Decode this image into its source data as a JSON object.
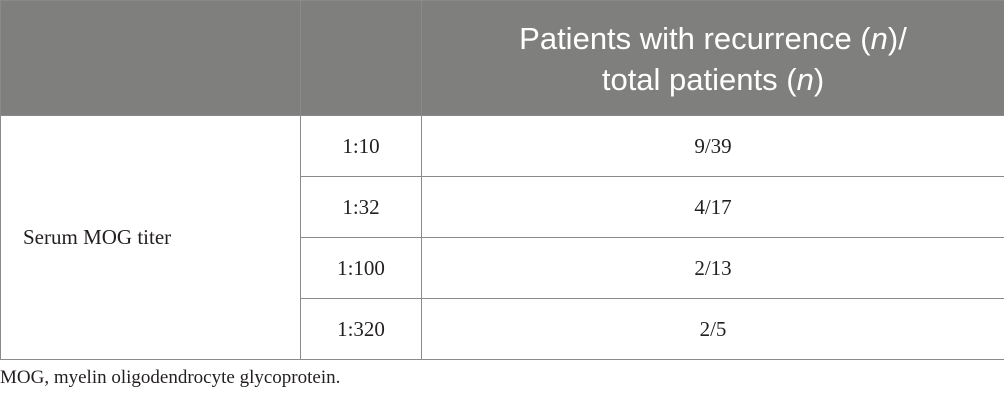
{
  "table": {
    "header": {
      "col1": "",
      "col2": "",
      "col3_line1_prefix": "Patients with recurrence (",
      "col3_line1_italic": "n",
      "col3_line1_suffix": ")/",
      "col3_line2_prefix": "total patients (",
      "col3_line2_italic": "n",
      "col3_line2_suffix": ")"
    },
    "group_label": "Serum MOG titer",
    "rows": [
      {
        "titer": "1:10",
        "ratio": "9/39"
      },
      {
        "titer": "1:32",
        "ratio": "4/17"
      },
      {
        "titer": "1:100",
        "ratio": "2/13"
      },
      {
        "titer": "1:320",
        "ratio": "2/5"
      }
    ]
  },
  "footnote": "MOG, myelin oligodendrocyte glycoprotein."
}
